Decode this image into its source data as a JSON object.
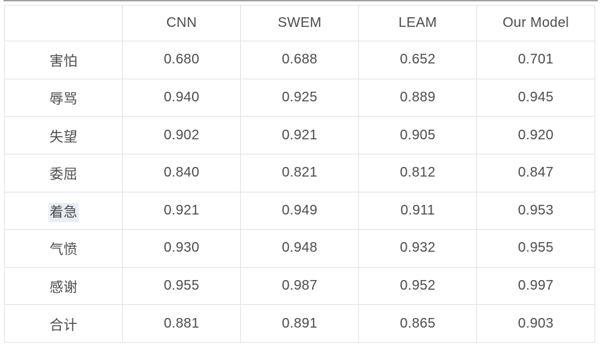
{
  "table": {
    "columns": [
      "",
      "CNN",
      "SWEM",
      "LEAM",
      "Our Model"
    ],
    "rows": [
      {
        "label": "害怕",
        "values": [
          "0.680",
          "0.688",
          "0.652",
          "0.701"
        ]
      },
      {
        "label": "辱骂",
        "values": [
          "0.940",
          "0.925",
          "0.889",
          "0.945"
        ]
      },
      {
        "label": "失望",
        "values": [
          "0.902",
          "0.921",
          "0.905",
          "0.920"
        ]
      },
      {
        "label": "委屈",
        "values": [
          "0.840",
          "0.821",
          "0.812",
          "0.847"
        ]
      },
      {
        "label": "着急",
        "values": [
          "0.921",
          "0.949",
          "0.911",
          "0.953"
        ],
        "label_highlighted": true
      },
      {
        "label": "气愤",
        "values": [
          "0.930",
          "0.948",
          "0.932",
          "0.955"
        ]
      },
      {
        "label": "感谢",
        "values": [
          "0.955",
          "0.987",
          "0.952",
          "0.997"
        ]
      },
      {
        "label": "合计",
        "values": [
          "0.881",
          "0.891",
          "0.865",
          "0.903"
        ],
        "last_value_emphasized": true
      }
    ],
    "emphasized_cell": {
      "row": "合计",
      "column": "Our Model",
      "value": "0.903"
    }
  },
  "colors": {
    "accent_orange": "#f97316",
    "selection_highlight_blue": "#e9eef6",
    "cell_border": "#e2e2e2",
    "text": "#4c4c4c",
    "top_rule": "#a0a0a0"
  },
  "chart_data": {
    "type": "table",
    "title": "",
    "columns": [
      "",
      "CNN",
      "SWEM",
      "LEAM",
      "Our Model"
    ],
    "rows": [
      [
        "害怕",
        0.68,
        0.688,
        0.652,
        0.701
      ],
      [
        "辱骂",
        0.94,
        0.925,
        0.889,
        0.945
      ],
      [
        "失望",
        0.902,
        0.921,
        0.905,
        0.92
      ],
      [
        "委屈",
        0.84,
        0.821,
        0.812,
        0.847
      ],
      [
        "着急",
        0.921,
        0.949,
        0.911,
        0.953
      ],
      [
        "气愤",
        0.93,
        0.948,
        0.932,
        0.955
      ],
      [
        "感谢",
        0.955,
        0.987,
        0.952,
        0.997
      ],
      [
        "合计",
        0.881,
        0.891,
        0.865,
        0.903
      ]
    ]
  }
}
